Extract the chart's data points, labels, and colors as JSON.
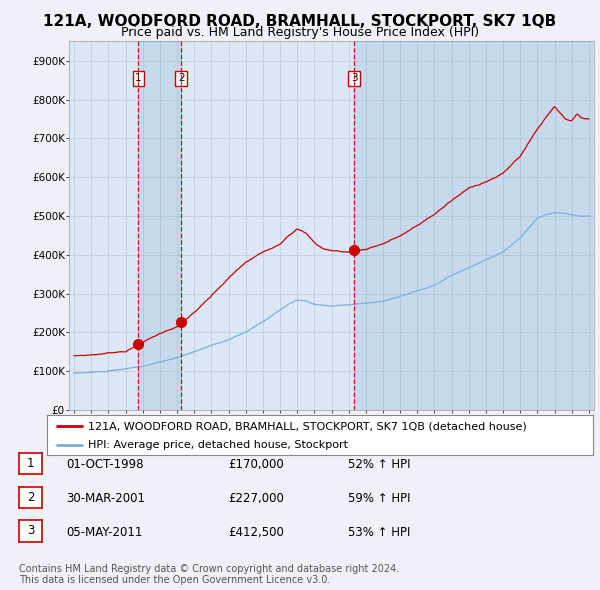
{
  "title": "121A, WOODFORD ROAD, BRAMHALL, STOCKPORT, SK7 1QB",
  "subtitle": "Price paid vs. HM Land Registry's House Price Index (HPI)",
  "ylim": [
    0,
    950000
  ],
  "yticks": [
    0,
    100000,
    200000,
    300000,
    400000,
    500000,
    600000,
    700000,
    800000,
    900000
  ],
  "ytick_labels": [
    "£0",
    "£100K",
    "£200K",
    "£300K",
    "£400K",
    "£500K",
    "£600K",
    "£700K",
    "£800K",
    "£900K"
  ],
  "sale_dates": [
    1998.75,
    2001.25,
    2011.33
  ],
  "sale_prices": [
    170000,
    227000,
    412500
  ],
  "sale_labels": [
    "1",
    "2",
    "3"
  ],
  "vline_color": "#cc0000",
  "dot_color": "#cc0000",
  "hpi_line_color": "#7ab0d4",
  "sale_line_color": "#cc0000",
  "background_color": "#f0f0f8",
  "plot_background": "#dce8f5",
  "grid_color": "#c0c8d8",
  "legend_entry1": "121A, WOODFORD ROAD, BRAMHALL, STOCKPORT, SK7 1QB (detached house)",
  "legend_entry2": "HPI: Average price, detached house, Stockport",
  "table_rows": [
    [
      "1",
      "01-OCT-1998",
      "£170,000",
      "52% ↑ HPI"
    ],
    [
      "2",
      "30-MAR-2001",
      "£227,000",
      "59% ↑ HPI"
    ],
    [
      "3",
      "05-MAY-2011",
      "£412,500",
      "53% ↑ HPI"
    ]
  ],
  "footer": "Contains HM Land Registry data © Crown copyright and database right 2024.\nThis data is licensed under the Open Government Licence v3.0.",
  "title_fontsize": 11,
  "subtitle_fontsize": 9,
  "tick_fontsize": 7.5,
  "legend_fontsize": 8,
  "table_fontsize": 8.5,
  "footer_fontsize": 7
}
